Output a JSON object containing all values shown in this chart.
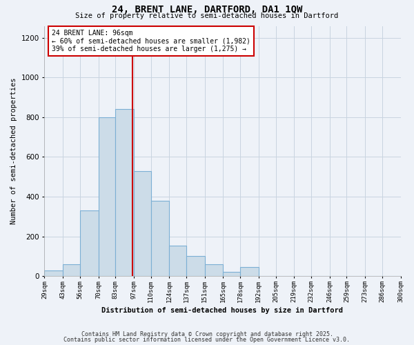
{
  "title": "24, BRENT LANE, DARTFORD, DA1 1QW",
  "subtitle": "Size of property relative to semi-detached houses in Dartford",
  "xlabel": "Distribution of semi-detached houses by size in Dartford",
  "ylabel": "Number of semi-detached properties",
  "bins": [
    "29sqm",
    "43sqm",
    "56sqm",
    "70sqm",
    "83sqm",
    "97sqm",
    "110sqm",
    "124sqm",
    "137sqm",
    "151sqm",
    "165sqm",
    "178sqm",
    "192sqm",
    "205sqm",
    "219sqm",
    "232sqm",
    "246sqm",
    "259sqm",
    "273sqm",
    "286sqm",
    "300sqm"
  ],
  "bin_edges": [
    29,
    43,
    56,
    70,
    83,
    97,
    110,
    124,
    137,
    151,
    165,
    178,
    192,
    205,
    219,
    232,
    246,
    259,
    273,
    286,
    300
  ],
  "values": [
    30,
    60,
    330,
    800,
    840,
    530,
    380,
    155,
    100,
    60,
    20,
    45,
    0,
    0,
    0,
    0,
    0,
    0,
    0,
    0
  ],
  "property_size": 96,
  "annotation_title": "24 BRENT LANE: 96sqm",
  "annotation_line1": "← 60% of semi-detached houses are smaller (1,982)",
  "annotation_line2": "39% of semi-detached houses are larger (1,275) →",
  "bar_color": "#ccdce8",
  "bar_edge_color": "#7bafd4",
  "marker_line_color": "#cc0000",
  "grid_color": "#c8d4e0",
  "background_color": "#eef2f8",
  "annotation_box_color": "#ffffff",
  "annotation_box_edge": "#cc0000",
  "footnote1": "Contains HM Land Registry data © Crown copyright and database right 2025.",
  "footnote2": "Contains public sector information licensed under the Open Government Licence v3.0.",
  "ylim": [
    0,
    1260
  ],
  "yticks": [
    0,
    200,
    400,
    600,
    800,
    1000,
    1200
  ]
}
